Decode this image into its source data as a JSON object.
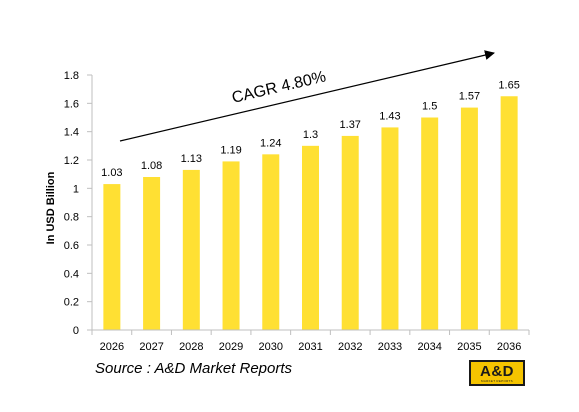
{
  "colors": {
    "bar": "#ffe033",
    "axis": "#bfbfbf",
    "text": "#000000",
    "logo_background": "#f5c400",
    "logo_text": "#1a1a1a"
  },
  "chart_data": {
    "type": "bar",
    "title": "",
    "xlabel": "",
    "ylabel": "In USD Billion",
    "categories": [
      "2026",
      "2027",
      "2028",
      "2029",
      "2030",
      "2031",
      "2032",
      "2033",
      "2034",
      "2035",
      "2036"
    ],
    "series": [
      {
        "values": [
          1.03,
          1.08,
          1.13,
          1.19,
          1.24,
          1.3,
          1.37,
          1.43,
          1.5,
          1.57,
          1.65
        ]
      }
    ],
    "value_labels": [
      "1.03",
      "1.08",
      "1.13",
      "1.19",
      "1.24",
      "1.3",
      "1.37",
      "1.43",
      "1.5",
      "1.57",
      "1.65"
    ],
    "ylim": [
      0,
      1.8
    ],
    "y_ticks": [
      "0",
      "0.2",
      "0.4",
      "0.6",
      "0.8",
      "1",
      "1.2",
      "1.4",
      "1.6",
      "1.8"
    ],
    "grid": false,
    "legend": "none",
    "annotation": {
      "text": "CAGR 4.80%",
      "type": "trend-arrow"
    }
  },
  "source": {
    "text": "Source : A&D Market Reports"
  },
  "logo": {
    "main": "A&D",
    "sub": "MARKET REPORTS"
  }
}
